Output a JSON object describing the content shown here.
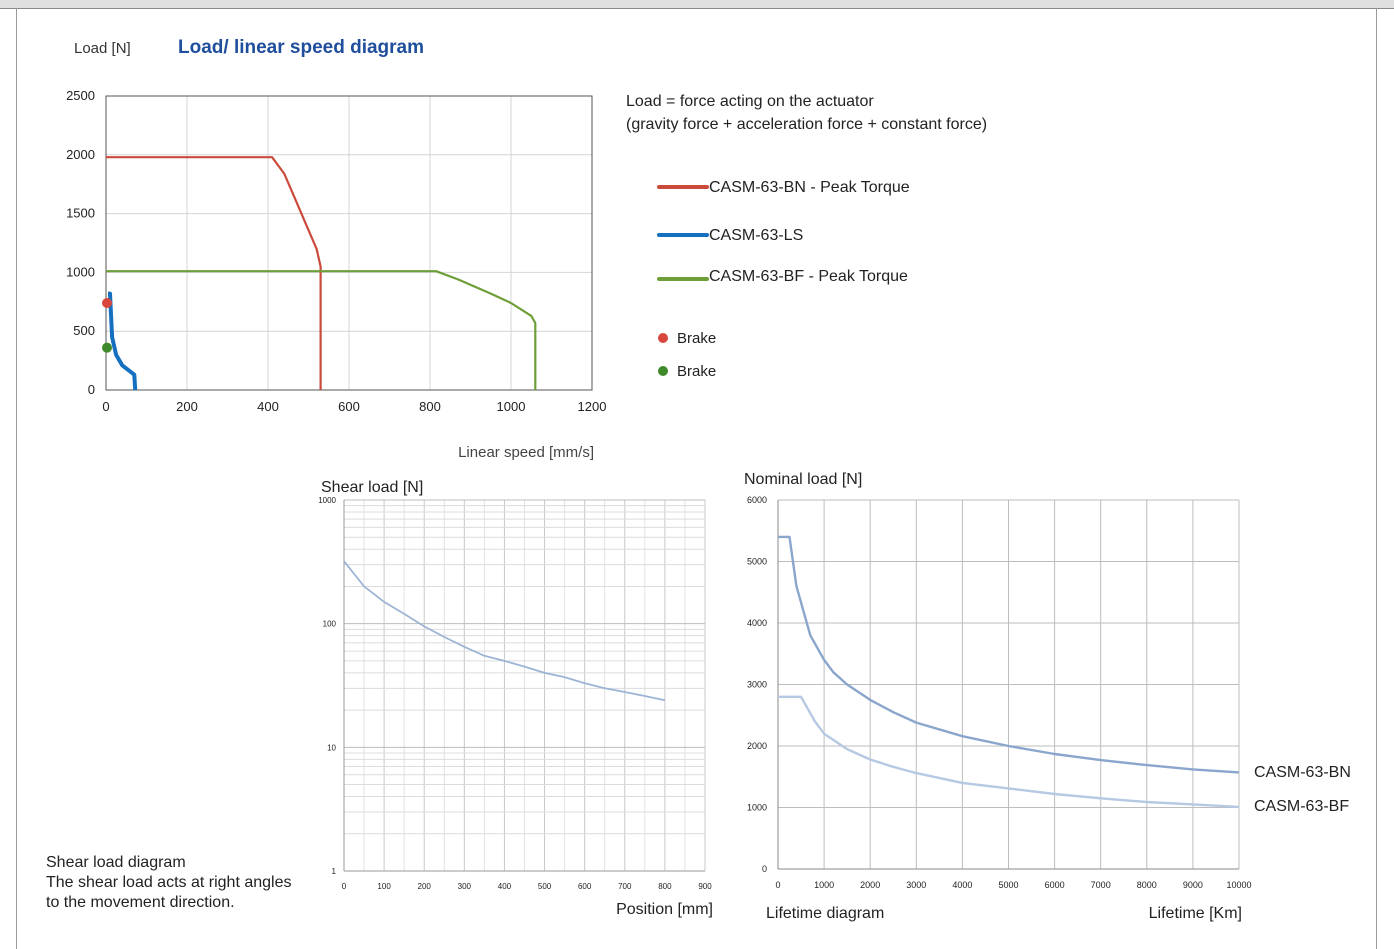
{
  "header": {
    "load_label": "Load [N]",
    "title": "Load/ linear speed diagram"
  },
  "description": {
    "line1": "Load = force acting on the actuator",
    "line2": "(gravity force + acceleration force + constant force)"
  },
  "legend": {
    "items": [
      {
        "label": "CASM-63-BN - Peak Torque",
        "color": "#cc4a3c"
      },
      {
        "label": "CASM-63-LS",
        "color": "#1670c0"
      },
      {
        "label": "CASM-63-BF - Peak Torque",
        "color": "#6e9e38"
      }
    ],
    "brakes": [
      {
        "label": "Brake",
        "color": "#d9463c"
      },
      {
        "label": "Brake",
        "color": "#3e8a2a"
      }
    ]
  },
  "note": {
    "line1": "Shear load diagram",
    "line2": "The shear load acts at right angles",
    "line3": "to the movement direction."
  },
  "series_end_labels": {
    "bn": "CASM-63-BN",
    "bf": "CASM-63-BF"
  },
  "chart_data": [
    {
      "type": "line",
      "title": "Load/ linear speed diagram",
      "xlabel": "Linear speed [mm/s]",
      "ylabel": "Load [N]",
      "xlim": [
        0,
        1200
      ],
      "ylim": [
        0,
        2500
      ],
      "xticks": [
        0,
        200,
        400,
        600,
        800,
        1000,
        1200
      ],
      "yticks": [
        0,
        500,
        1000,
        1500,
        2000,
        2500
      ],
      "grid": true,
      "series": [
        {
          "name": "CASM-63-BN - Peak Torque",
          "color": "#cc4a3c",
          "points": [
            [
              0,
              1980
            ],
            [
              410,
              1980
            ],
            [
              440,
              1840
            ],
            [
              470,
              1600
            ],
            [
              495,
              1400
            ],
            [
              520,
              1200
            ],
            [
              530,
              1050
            ],
            [
              530,
              0
            ]
          ]
        },
        {
          "name": "CASM-63-LS",
          "color": "#1670c0",
          "points": [
            [
              5,
              820
            ],
            [
              10,
              820
            ],
            [
              15,
              450
            ],
            [
              25,
              300
            ],
            [
              40,
              210
            ],
            [
              70,
              130
            ],
            [
              72,
              0
            ]
          ]
        },
        {
          "name": "CASM-63-BF - Peak Torque",
          "color": "#6e9e38",
          "points": [
            [
              0,
              1010
            ],
            [
              815,
              1010
            ],
            [
              870,
              940
            ],
            [
              950,
              820
            ],
            [
              1000,
              740
            ],
            [
              1050,
              630
            ],
            [
              1060,
              570
            ],
            [
              1060,
              0
            ]
          ]
        }
      ],
      "markers": [
        {
          "name": "Brake",
          "color": "#d9463c",
          "x": 0,
          "y": 740
        },
        {
          "name": "Brake",
          "color": "#3e8a2a",
          "x": 0,
          "y": 360
        }
      ]
    },
    {
      "type": "line",
      "title": "",
      "xlabel": "Position [mm]",
      "ylabel": "Shear load [N]",
      "xlim": [
        0,
        900
      ],
      "ylim": [
        1,
        1000
      ],
      "yscale": "log",
      "xticks": [
        0,
        100,
        200,
        300,
        400,
        500,
        600,
        700,
        800,
        900
      ],
      "yticks": [
        1,
        10,
        100,
        1000
      ],
      "grid": true,
      "series": [
        {
          "name": "",
          "color": "#9db4d4",
          "points": [
            [
              0,
              320
            ],
            [
              50,
              200
            ],
            [
              100,
              150
            ],
            [
              150,
              120
            ],
            [
              200,
              95
            ],
            [
              250,
              78
            ],
            [
              300,
              65
            ],
            [
              350,
              55
            ],
            [
              400,
              50
            ],
            [
              450,
              45
            ],
            [
              500,
              40
            ],
            [
              550,
              37
            ],
            [
              600,
              33
            ],
            [
              650,
              30
            ],
            [
              700,
              28
            ],
            [
              750,
              26
            ],
            [
              800,
              24
            ]
          ]
        }
      ]
    },
    {
      "type": "line",
      "title": "Lifetime diagram",
      "xlabel": "Lifetime [Km]",
      "ylabel": "Nominal load [N]",
      "xlim": [
        0,
        10000
      ],
      "ylim": [
        0,
        6000
      ],
      "xticks": [
        0,
        1000,
        2000,
        3000,
        4000,
        5000,
        6000,
        7000,
        8000,
        9000,
        10000
      ],
      "yticks": [
        0,
        1000,
        2000,
        3000,
        4000,
        5000,
        6000
      ],
      "grid": true,
      "series": [
        {
          "name": "CASM-63-BN",
          "color": "#8aa6cc",
          "points": [
            [
              0,
              5400
            ],
            [
              250,
              5400
            ],
            [
              400,
              4600
            ],
            [
              700,
              3800
            ],
            [
              1000,
              3400
            ],
            [
              1200,
              3200
            ],
            [
              1500,
              3000
            ],
            [
              2000,
              2750
            ],
            [
              2500,
              2550
            ],
            [
              3000,
              2380
            ],
            [
              4000,
              2160
            ],
            [
              5000,
              2000
            ],
            [
              6000,
              1870
            ],
            [
              7000,
              1770
            ],
            [
              8000,
              1690
            ],
            [
              9000,
              1620
            ],
            [
              10000,
              1570
            ]
          ]
        },
        {
          "name": "CASM-63-BF",
          "color": "#b5c9e2",
          "points": [
            [
              0,
              2800
            ],
            [
              500,
              2800
            ],
            [
              800,
              2400
            ],
            [
              1000,
              2200
            ],
            [
              1500,
              1950
            ],
            [
              2000,
              1780
            ],
            [
              2500,
              1660
            ],
            [
              3000,
              1560
            ],
            [
              4000,
              1400
            ],
            [
              5000,
              1310
            ],
            [
              6000,
              1220
            ],
            [
              7000,
              1150
            ],
            [
              8000,
              1090
            ],
            [
              9000,
              1050
            ],
            [
              10000,
              1010
            ]
          ]
        }
      ]
    }
  ]
}
